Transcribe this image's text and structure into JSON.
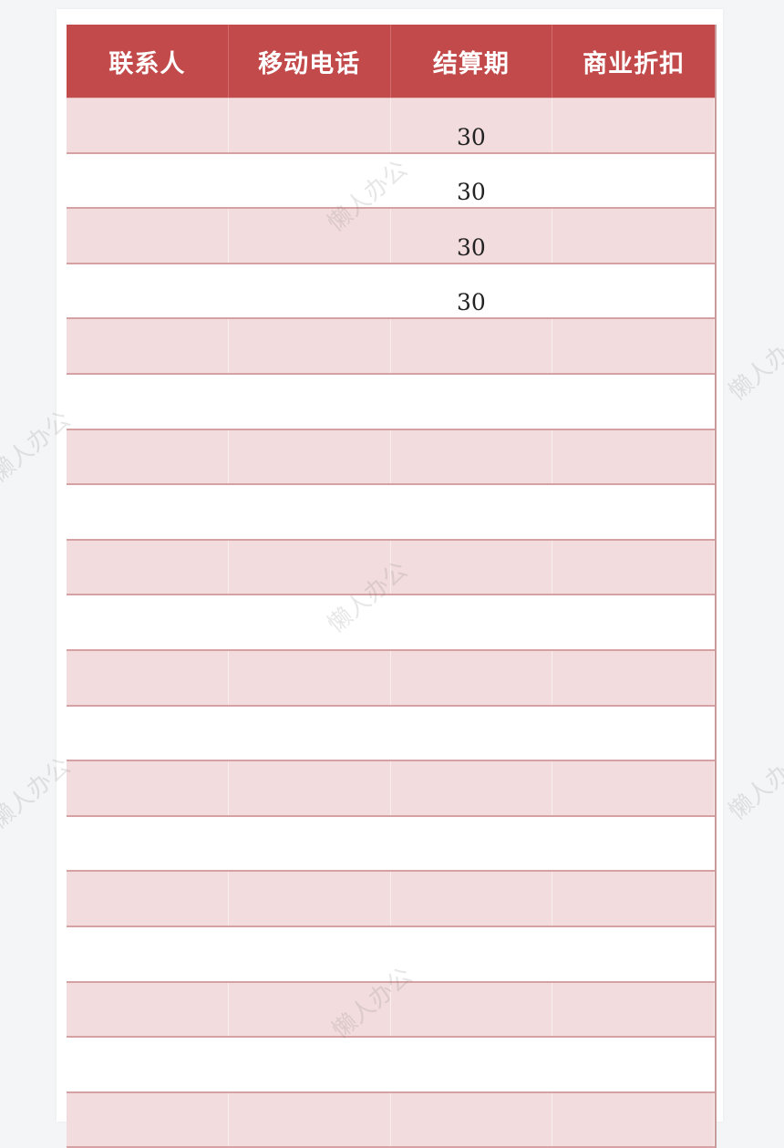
{
  "table": {
    "headers": [
      "联系人",
      "移动电话",
      "结算期",
      "商业折扣"
    ],
    "rows": [
      [
        "",
        "",
        "30",
        ""
      ],
      [
        "",
        "",
        "30",
        ""
      ],
      [
        "",
        "",
        "30",
        ""
      ],
      [
        "",
        "",
        "30",
        ""
      ],
      [
        "",
        "",
        "",
        ""
      ],
      [
        "",
        "",
        "",
        ""
      ],
      [
        "",
        "",
        "",
        ""
      ],
      [
        "",
        "",
        "",
        ""
      ],
      [
        "",
        "",
        "",
        ""
      ],
      [
        "",
        "",
        "",
        ""
      ],
      [
        "",
        "",
        "",
        ""
      ],
      [
        "",
        "",
        "",
        ""
      ],
      [
        "",
        "",
        "",
        ""
      ],
      [
        "",
        "",
        "",
        ""
      ],
      [
        "",
        "",
        "",
        ""
      ],
      [
        "",
        "",
        "",
        ""
      ],
      [
        "",
        "",
        "",
        ""
      ],
      [
        "",
        "",
        "",
        ""
      ],
      [
        "",
        "",
        "",
        ""
      ]
    ]
  },
  "watermark": "懒人办公",
  "colors": {
    "header_bg": "#c24a4b",
    "band_bg": "#f2dcdd",
    "row_border": "#d6a1a3"
  }
}
